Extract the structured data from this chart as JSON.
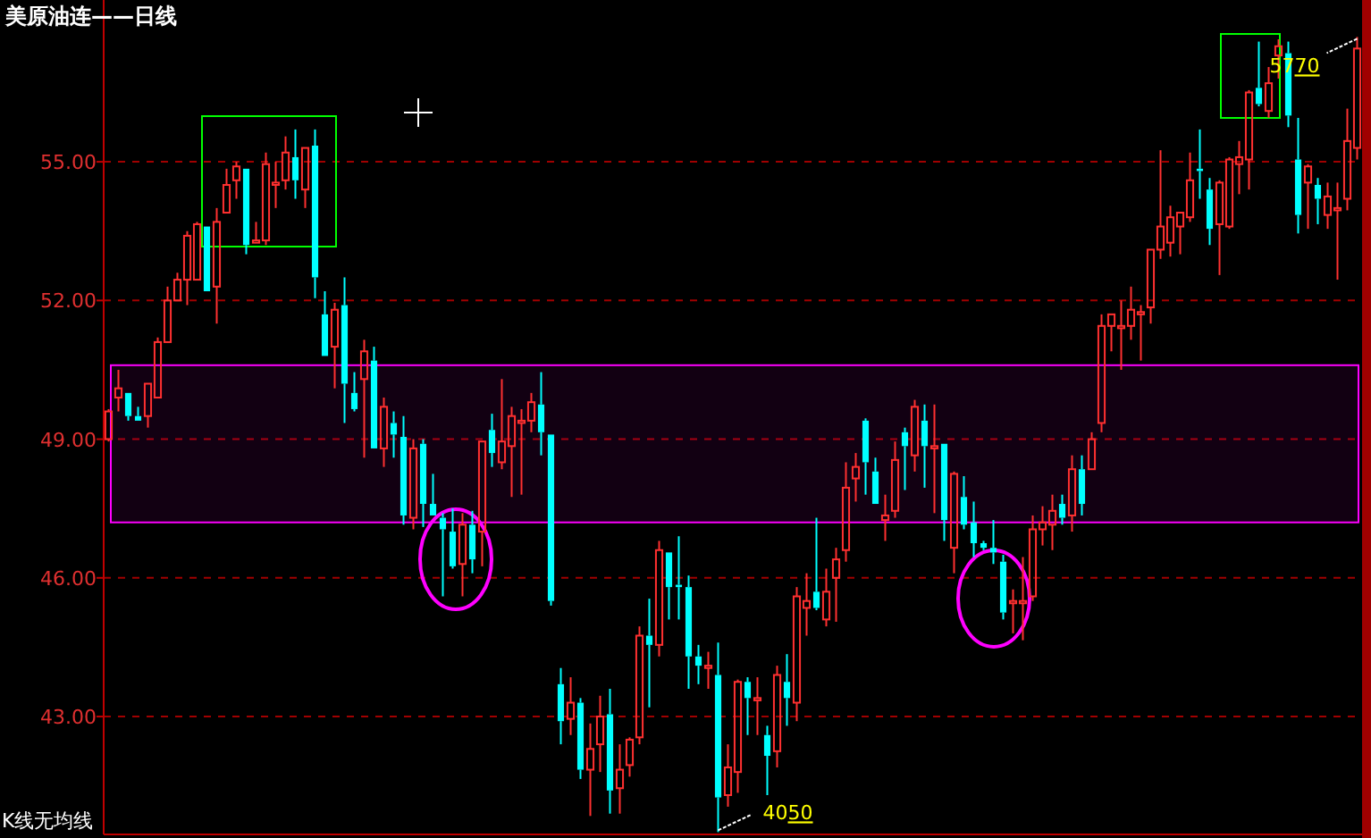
{
  "chart_data": {
    "type": "candlestick",
    "title": "美原油连——日线",
    "annotations": [
      "K线无均线",
      "5770",
      "4050"
    ],
    "ylim": [
      40.45,
      58.5
    ],
    "yticks": [
      {
        "value": 43,
        "label": "43.00"
      },
      {
        "value": 46,
        "label": "46.00"
      },
      {
        "value": 49,
        "label": "49.00"
      },
      {
        "value": 52,
        "label": "52.00"
      },
      {
        "value": 55,
        "label": "55.00"
      }
    ],
    "grid": "y",
    "colors": [
      "#ff3030",
      "#ff3030",
      "#00ffff",
      "#00ffff",
      "#ff3030",
      "#ff3030",
      "#ff3030",
      "#ff3030",
      "#ff3030",
      "#ff3030",
      "#00ffff",
      "#ff3030",
      "#ff3030",
      "#ff3030",
      "#00ffff",
      "#ff3030",
      "#ff3030",
      "#ff3030",
      "#ff3030",
      "#00ffff",
      "#ff3030",
      "#00ffff",
      "#00ffff",
      "#ff3030",
      "#00ffff",
      "#00ffff",
      "#ff3030",
      "#00ffff",
      "#ff3030",
      "#00ffff",
      "#00ffff",
      "#ff3030",
      "#00ffff",
      "#00ffff",
      "#00ffff",
      "#00ffff",
      "#ff3030",
      "#00ffff",
      "#ff3030",
      "#00ffff",
      "#ff3030",
      "#ff3030",
      "#ff3030",
      "#ff3030",
      "#00ffff",
      "#00ffff",
      "#00ffff",
      "#ff3030",
      "#00ffff",
      "#ff3030",
      "#ff3030",
      "#00ffff",
      "#ff3030",
      "#ff3030",
      "#ff3030",
      "#00ffff",
      "#ff3030",
      "#00ffff",
      "#00ffff",
      "#00ffff",
      "#00ffff",
      "#ff3030",
      "#00ffff",
      "#ff3030",
      "#ff3030",
      "#00ffff",
      "#ff3030",
      "#00ffff",
      "#ff3030",
      "#00ffff",
      "#ff3030",
      "#ff3030",
      "#00ffff",
      "#ff3030",
      "#ff3030",
      "#ff3030",
      "#ff3030",
      "#00ffff",
      "#00ffff",
      "#ff3030",
      "#ff3030",
      "#00ffff",
      "#ff3030",
      "#00ffff",
      "#ff3030",
      "#00ffff",
      "#ff3030",
      "#00ffff",
      "#00ffff",
      "#00ffff",
      "#00ffff",
      "#00ffff",
      "#ff3030",
      "#ff3030",
      "#ff3030",
      "#ff3030",
      "#ff3030",
      "#00ffff",
      "#ff3030",
      "#00ffff",
      "#ff3030",
      "#ff3030",
      "#ff3030",
      "#ff3030",
      "#ff3030",
      "#ff3030",
      "#ff3030",
      "#ff3030",
      "#ff3030",
      "#ff3030",
      "#ff3030",
      "#00ffff",
      "#00ffff",
      "#ff3030",
      "#ff3030",
      "#ff3030",
      "#ff3030",
      "#00ffff",
      "#ff3030",
      "#ff3030",
      "#00ffff",
      "#00ffff",
      "#ff3030",
      "#00ffff",
      "#ff3030",
      "#ff3030",
      "#ff3030",
      "#ff3030"
    ],
    "bands": [
      {
        "axis": "y",
        "from": 47.2,
        "to": 50.6,
        "color": "#ff00ff"
      }
    ],
    "categories": [
      null,
      null,
      null,
      null,
      null,
      null,
      null,
      null,
      null,
      null,
      null,
      null,
      null,
      null,
      null,
      null,
      null,
      null,
      null,
      null,
      null,
      null,
      null,
      null,
      null,
      null,
      null,
      null,
      null,
      null,
      null,
      null,
      null,
      null,
      null,
      null,
      null,
      null,
      null,
      null,
      null,
      null,
      null,
      null,
      null,
      null,
      null,
      null,
      null,
      null,
      null,
      null,
      null,
      null,
      null,
      null,
      null,
      null,
      null,
      null,
      null,
      null,
      null,
      null,
      null,
      null,
      null,
      null,
      null,
      null,
      null,
      null,
      null,
      null,
      null,
      null,
      null,
      null,
      null,
      null,
      null,
      null,
      null,
      null,
      null,
      null,
      null,
      null,
      null,
      null,
      null,
      null,
      null,
      null,
      null,
      null,
      null,
      null,
      null,
      null,
      null,
      null,
      null,
      null,
      null,
      null,
      null,
      null,
      null,
      null,
      null,
      null,
      null,
      null,
      null,
      null,
      null,
      null,
      null,
      null,
      null,
      null,
      null,
      null,
      null,
      null,
      null,
      null
    ],
    "ohlc": [
      [
        49.0,
        49.65,
        48.95,
        49.6
      ],
      [
        49.9,
        50.5,
        49.6,
        50.1
      ],
      [
        50.0,
        50.0,
        49.4,
        49.5
      ],
      [
        49.5,
        49.7,
        49.4,
        49.4
      ],
      [
        49.5,
        50.2,
        49.25,
        50.2
      ],
      [
        49.9,
        51.2,
        49.9,
        51.1
      ],
      [
        51.1,
        52.3,
        51.1,
        52.0
      ],
      [
        52.0,
        52.6,
        52.0,
        52.45
      ],
      [
        52.45,
        53.5,
        51.9,
        53.4
      ],
      [
        52.45,
        53.7,
        52.45,
        53.65
      ],
      [
        53.6,
        53.6,
        52.2,
        52.2
      ],
      [
        52.3,
        54.0,
        51.5,
        53.7
      ],
      [
        53.9,
        54.85,
        53.9,
        54.5
      ],
      [
        54.6,
        55.0,
        54.2,
        54.9
      ],
      [
        54.85,
        54.85,
        53.0,
        53.2
      ],
      [
        53.25,
        53.7,
        53.25,
        53.3
      ],
      [
        53.3,
        55.2,
        53.2,
        54.95
      ],
      [
        54.5,
        55.0,
        54.0,
        54.55
      ],
      [
        54.6,
        55.55,
        54.4,
        55.2
      ],
      [
        55.1,
        55.7,
        54.2,
        54.6
      ],
      [
        54.4,
        55.3,
        54.0,
        55.3
      ],
      [
        55.35,
        55.7,
        52.05,
        52.5
      ],
      [
        51.7,
        52.2,
        50.8,
        50.8
      ],
      [
        51.0,
        51.95,
        50.1,
        51.8
      ],
      [
        51.9,
        52.5,
        49.35,
        50.2
      ],
      [
        50.0,
        50.45,
        49.6,
        49.65
      ],
      [
        50.3,
        51.15,
        48.6,
        50.9
      ],
      [
        50.7,
        51.0,
        48.8,
        48.8
      ],
      [
        48.8,
        49.9,
        48.4,
        49.7
      ],
      [
        49.35,
        49.6,
        48.6,
        49.1
      ],
      [
        49.05,
        49.5,
        47.15,
        47.35
      ],
      [
        47.3,
        49.0,
        47.05,
        48.8
      ],
      [
        48.9,
        49.0,
        47.1,
        47.6
      ],
      [
        47.6,
        48.25,
        47.35,
        47.35
      ],
      [
        47.3,
        47.4,
        45.6,
        47.05
      ],
      [
        47.0,
        47.5,
        46.2,
        46.25
      ],
      [
        46.3,
        47.4,
        45.6,
        47.15
      ],
      [
        47.15,
        47.45,
        46.1,
        46.4
      ],
      [
        47.0,
        48.95,
        46.25,
        48.95
      ],
      [
        49.2,
        49.55,
        48.4,
        48.7
      ],
      [
        48.5,
        50.3,
        48.35,
        48.95
      ],
      [
        48.85,
        49.7,
        47.75,
        49.5
      ],
      [
        49.35,
        49.65,
        47.8,
        49.4
      ],
      [
        49.4,
        50.0,
        49.15,
        49.8
      ],
      [
        49.75,
        50.45,
        48.65,
        49.15
      ],
      [
        49.1,
        49.1,
        45.4,
        45.5
      ],
      [
        43.7,
        44.05,
        42.4,
        42.9
      ],
      [
        42.95,
        43.85,
        42.6,
        43.3
      ],
      [
        43.3,
        43.4,
        41.65,
        41.85
      ],
      [
        41.85,
        42.85,
        40.85,
        42.3
      ],
      [
        42.4,
        43.45,
        41.8,
        43.0
      ],
      [
        43.05,
        43.6,
        40.9,
        41.4
      ],
      [
        41.45,
        42.4,
        40.9,
        41.85
      ],
      [
        41.95,
        42.55,
        41.7,
        42.5
      ],
      [
        42.55,
        44.95,
        42.4,
        44.75
      ],
      [
        44.75,
        45.55,
        43.2,
        44.55
      ],
      [
        44.55,
        46.8,
        44.3,
        46.6
      ],
      [
        46.55,
        46.55,
        45.1,
        45.8
      ],
      [
        45.85,
        46.9,
        45.1,
        45.8
      ],
      [
        45.8,
        46.05,
        43.6,
        44.3
      ],
      [
        44.3,
        44.55,
        43.7,
        44.1
      ],
      [
        44.05,
        44.4,
        43.6,
        44.1
      ],
      [
        43.9,
        44.6,
        40.5,
        41.25
      ],
      [
        41.3,
        42.4,
        41.05,
        41.9
      ],
      [
        41.8,
        43.8,
        41.35,
        43.75
      ],
      [
        43.75,
        43.85,
        42.6,
        43.4
      ],
      [
        43.35,
        43.85,
        42.6,
        43.4
      ],
      [
        42.6,
        42.8,
        41.3,
        42.15
      ],
      [
        42.25,
        44.1,
        41.9,
        43.9
      ],
      [
        43.75,
        44.35,
        42.8,
        43.4
      ],
      [
        43.3,
        45.8,
        42.9,
        45.6
      ],
      [
        45.35,
        46.1,
        44.75,
        45.5
      ],
      [
        45.7,
        47.3,
        45.3,
        45.35
      ],
      [
        45.1,
        46.2,
        44.95,
        45.7
      ],
      [
        46.0,
        46.65,
        45.05,
        46.4
      ],
      [
        46.6,
        48.5,
        46.35,
        47.95
      ],
      [
        48.15,
        48.7,
        47.65,
        48.4
      ],
      [
        49.4,
        49.45,
        47.8,
        48.5
      ],
      [
        48.3,
        48.6,
        47.6,
        47.6
      ],
      [
        47.25,
        47.8,
        46.8,
        47.35
      ],
      [
        47.45,
        48.95,
        47.3,
        48.55
      ],
      [
        49.15,
        49.25,
        47.9,
        48.85
      ],
      [
        48.65,
        49.85,
        48.3,
        49.7
      ],
      [
        49.4,
        49.75,
        47.95,
        48.85
      ],
      [
        48.8,
        49.75,
        47.4,
        48.85
      ],
      [
        48.9,
        48.9,
        46.8,
        47.25
      ],
      [
        46.65,
        48.3,
        46.1,
        48.25
      ],
      [
        47.75,
        48.2,
        47.05,
        47.15
      ],
      [
        47.2,
        47.65,
        46.45,
        46.75
      ],
      [
        46.75,
        46.8,
        46.6,
        46.65
      ],
      [
        46.65,
        47.25,
        46.3,
        46.55
      ],
      [
        46.35,
        46.5,
        45.1,
        45.25
      ],
      [
        45.45,
        45.75,
        44.8,
        45.5
      ],
      [
        45.45,
        46.45,
        44.65,
        45.5
      ],
      [
        45.6,
        47.35,
        45.5,
        47.05
      ],
      [
        47.05,
        47.55,
        46.7,
        47.2
      ],
      [
        47.15,
        47.8,
        46.6,
        47.45
      ],
      [
        47.6,
        47.8,
        47.15,
        47.3
      ],
      [
        47.35,
        48.65,
        47.0,
        48.35
      ],
      [
        48.35,
        48.65,
        47.35,
        47.6
      ],
      [
        48.35,
        49.15,
        48.35,
        49.0
      ],
      [
        49.35,
        51.7,
        49.15,
        51.45
      ],
      [
        51.45,
        51.7,
        50.9,
        51.7
      ],
      [
        51.4,
        52.0,
        50.5,
        51.45
      ],
      [
        51.45,
        52.3,
        51.15,
        51.8
      ],
      [
        51.7,
        51.9,
        50.7,
        51.75
      ],
      [
        51.85,
        53.1,
        51.5,
        53.1
      ],
      [
        53.1,
        55.25,
        52.9,
        53.6
      ],
      [
        53.25,
        54.05,
        52.95,
        53.8
      ],
      [
        53.6,
        53.9,
        53.0,
        53.9
      ],
      [
        53.8,
        55.2,
        53.7,
        54.6
      ],
      [
        54.85,
        55.7,
        54.2,
        54.8
      ],
      [
        54.4,
        54.65,
        53.2,
        53.55
      ],
      [
        53.65,
        54.6,
        52.55,
        54.55
      ],
      [
        53.6,
        55.1,
        53.55,
        55.05
      ],
      [
        54.95,
        55.45,
        54.3,
        55.1
      ],
      [
        55.05,
        56.55,
        54.4,
        56.5
      ],
      [
        56.6,
        57.6,
        56.2,
        56.25
      ],
      [
        56.1,
        57.05,
        55.95,
        56.7
      ],
      [
        57.3,
        57.65,
        56.8,
        57.5
      ],
      [
        57.35,
        57.6,
        55.75,
        56.0
      ],
      [
        55.05,
        55.95,
        53.45,
        53.85
      ],
      [
        54.55,
        54.95,
        53.55,
        54.9
      ],
      [
        54.5,
        54.65,
        53.65,
        54.2
      ],
      [
        53.85,
        54.55,
        53.55,
        54.25
      ],
      [
        53.95,
        54.55,
        52.45,
        54.0
      ],
      [
        54.2,
        56.15,
        53.95,
        55.45
      ],
      [
        55.3,
        57.7,
        55.05,
        57.45
      ]
    ]
  }
}
